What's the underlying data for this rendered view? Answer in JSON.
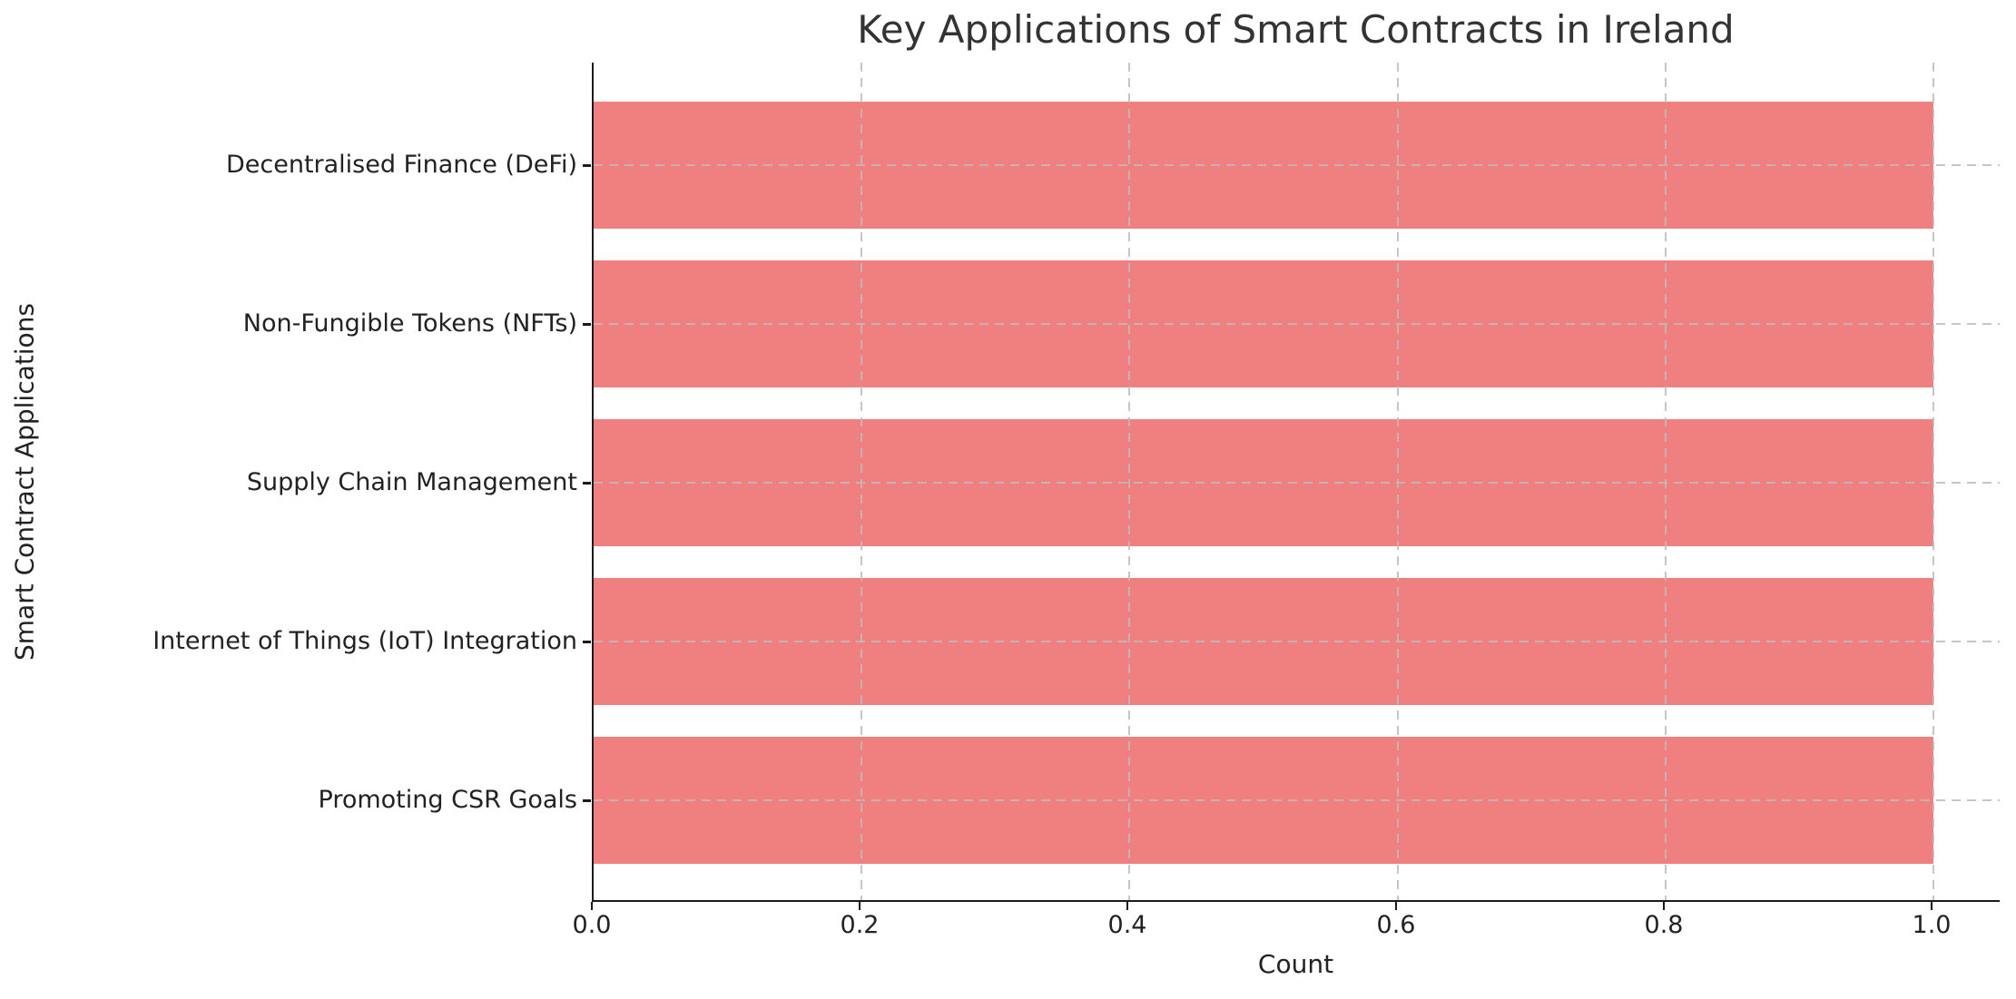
{
  "chart_data": {
    "type": "bar",
    "orientation": "horizontal",
    "title": "Key Applications of Smart Contracts in Ireland",
    "xlabel": "Count",
    "ylabel": "Smart Contract Applications",
    "categories": [
      "Decentralised Finance (DeFi)",
      "Non-Fungible Tokens (NFTs)",
      "Supply Chain Management",
      "Internet of Things (IoT) Integration",
      "Promoting CSR Goals"
    ],
    "values": [
      1.0,
      1.0,
      1.0,
      1.0,
      1.0
    ],
    "xlim": [
      0,
      1.05
    ],
    "x_tick_values": [
      0.0,
      0.2,
      0.4,
      0.6,
      0.8,
      1.0
    ],
    "x_tick_labels": [
      "0.0",
      "0.2",
      "0.4",
      "0.6",
      "0.8",
      "1.0"
    ],
    "grid": "dashed, both axes, drawn over bars",
    "legend_position": "none"
  },
  "colors": {
    "bar": "#F08080",
    "grid": "rgba(188,188,188,0.85)",
    "axis": "#1a1a1a",
    "tick_text": "#222222",
    "title_text": "#333333",
    "background": "#ffffff"
  }
}
